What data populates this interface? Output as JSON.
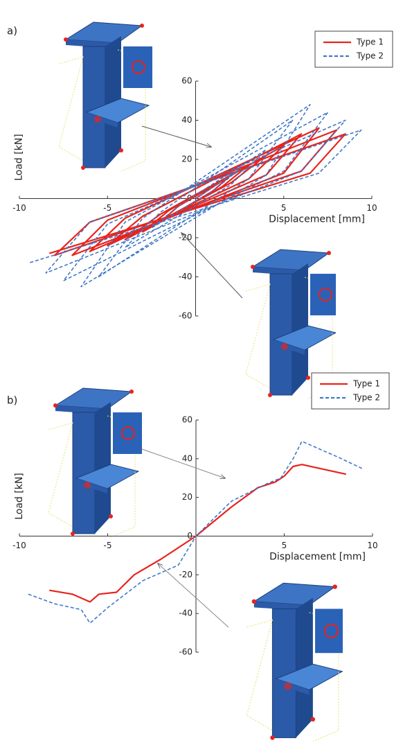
{
  "chart_data": [
    {
      "type": "line",
      "panel_label": "a)",
      "x_label": "Displacement [mm]",
      "y_label": "Load [kN]",
      "xlim": [
        -10,
        10
      ],
      "ylim": [
        -60,
        60
      ],
      "xticks": [
        -10,
        -5,
        5,
        10
      ],
      "yticks": [
        -60,
        -40,
        -20,
        0,
        20,
        40,
        60
      ],
      "legend": "upper right",
      "series": [
        {
          "name": "Type 1",
          "color": "#e8231d",
          "linestyle": "solid",
          "x": [
            0,
            2,
            1,
            -2,
            -1,
            3,
            1.5,
            -3,
            -1.5,
            4,
            2,
            -4,
            -2,
            5,
            3,
            -5,
            -3,
            6,
            4,
            -6,
            -4,
            7,
            5,
            -7,
            -5,
            8,
            6,
            -8,
            -6,
            8.5,
            6.5,
            -8.3
          ],
          "values": [
            0,
            12,
            4,
            -12,
            -4,
            17,
            6,
            -17,
            -6,
            22,
            8,
            -21,
            -8,
            27,
            10,
            -24,
            -9,
            33,
            12,
            -27,
            -10,
            36,
            13,
            -29,
            -11,
            35,
            14,
            -29,
            -12,
            33,
            13,
            -28
          ]
        },
        {
          "name": "Type 2",
          "color": "#3f78c8",
          "linestyle": "dashed",
          "x": [
            0,
            2.5,
            1,
            -2.5,
            -1,
            4,
            2,
            -4,
            -2,
            5.5,
            3,
            -5.5,
            -3,
            6.5,
            4,
            -6.5,
            -4,
            7.5,
            5,
            -7.5,
            -5,
            8.5,
            6,
            -8.5,
            -6,
            9.4,
            7,
            -9.5
          ],
          "values": [
            0,
            15,
            4,
            -15,
            -4,
            25,
            7,
            -25,
            -7,
            40,
            10,
            -40,
            -10,
            48,
            12,
            -45,
            -12,
            44,
            14,
            -42,
            -13,
            40,
            14,
            -38,
            -12,
            35,
            13,
            -33
          ]
        }
      ]
    },
    {
      "type": "line",
      "panel_label": "b)",
      "x_label": "Displacement [mm]",
      "y_label": "Load [kN]",
      "xlim": [
        -10,
        10
      ],
      "ylim": [
        -60,
        60
      ],
      "xticks": [
        -10,
        -5,
        5,
        10
      ],
      "yticks": [
        -60,
        -40,
        -20,
        0,
        20,
        40,
        60
      ],
      "legend": "upper right",
      "series": [
        {
          "name": "Type 1",
          "color": "#e8231d",
          "linestyle": "solid",
          "x": [
            -8.3,
            -7,
            -6,
            -5.5,
            -4.5,
            -3.5,
            -2,
            0,
            2,
            3.5,
            4.5,
            5,
            5.5,
            6,
            7,
            8.5
          ],
          "values": [
            -28,
            -30,
            -34,
            -30,
            -29,
            -20,
            -12,
            0,
            15,
            25,
            28,
            31,
            36,
            37,
            35,
            32
          ]
        },
        {
          "name": "Type 2",
          "color": "#3f78c8",
          "linestyle": "dashed",
          "x": [
            -9.5,
            -8,
            -6.5,
            -6,
            -5,
            -3,
            -1,
            0,
            2,
            4,
            4.8,
            5.5,
            6,
            7,
            8,
            9.4
          ],
          "values": [
            -30,
            -35,
            -38,
            -45,
            -37,
            -23,
            -15,
            0,
            18,
            27,
            30,
            40,
            49,
            45,
            41,
            35
          ]
        }
      ]
    }
  ]
}
